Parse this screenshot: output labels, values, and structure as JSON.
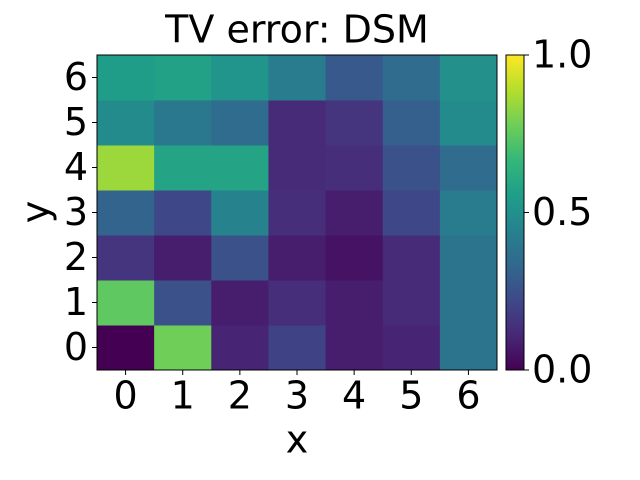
{
  "chart_data": {
    "type": "heatmap",
    "title": "TV error: DSM",
    "xlabel": "x",
    "ylabel": "y",
    "x": [
      0,
      1,
      2,
      3,
      4,
      5,
      6
    ],
    "y": [
      0,
      1,
      2,
      3,
      4,
      5,
      6
    ],
    "values": [
      [
        0.0,
        0.78,
        0.1,
        0.2,
        0.08,
        0.1,
        0.38
      ],
      [
        0.75,
        0.25,
        0.08,
        0.13,
        0.08,
        0.12,
        0.38
      ],
      [
        0.15,
        0.08,
        0.25,
        0.08,
        0.05,
        0.12,
        0.38
      ],
      [
        0.32,
        0.22,
        0.45,
        0.13,
        0.08,
        0.22,
        0.42
      ],
      [
        0.85,
        0.58,
        0.58,
        0.12,
        0.13,
        0.25,
        0.35
      ],
      [
        0.48,
        0.4,
        0.35,
        0.12,
        0.15,
        0.3,
        0.48
      ],
      [
        0.55,
        0.57,
        0.52,
        0.42,
        0.28,
        0.35,
        0.5
      ]
    ],
    "colormap": "viridis",
    "clim": [
      0,
      1
    ],
    "cticks": [
      {
        "value": 0,
        "label": "0.0"
      },
      0.5,
      {
        "value": 1,
        "label": "1.0"
      }
    ]
  }
}
